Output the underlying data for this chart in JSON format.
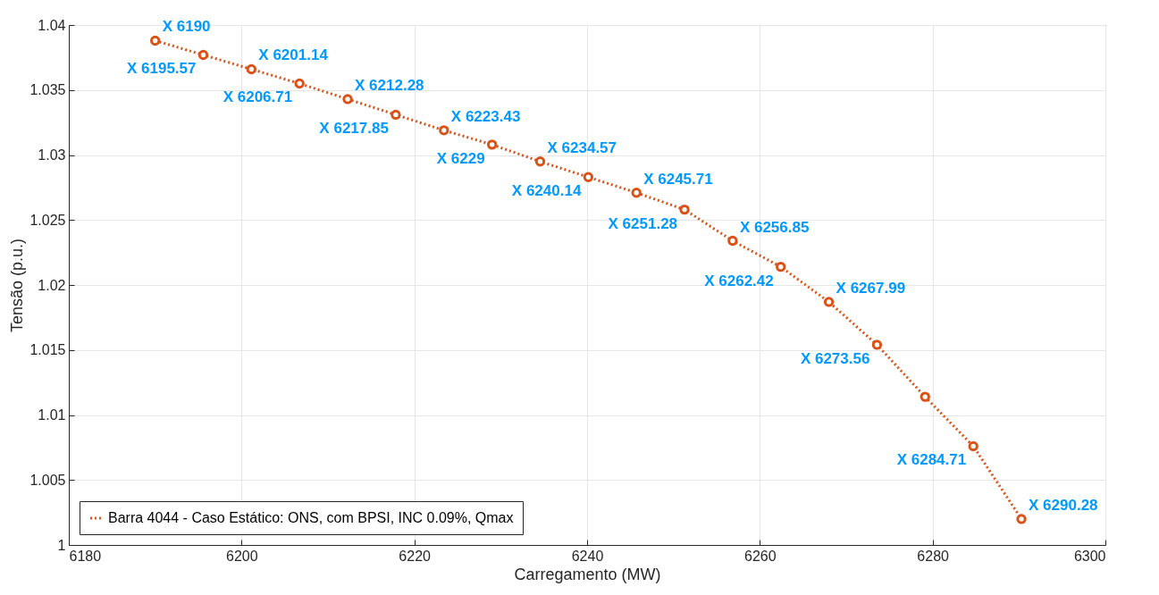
{
  "chart_data": {
    "type": "line",
    "xlabel": "Carregamento (MW)",
    "ylabel": "Tensão (p.u.)",
    "x": [
      6190,
      6195.57,
      6201.14,
      6206.71,
      6212.28,
      6217.85,
      6223.43,
      6229,
      6234.57,
      6240.14,
      6245.71,
      6251.28,
      6256.85,
      6262.42,
      6267.99,
      6273.56,
      6279.13,
      6284.71,
      6290.28
    ],
    "series": [
      {
        "name": "Barra 4044 - Caso Estático: ONS, com BPSI, INC 0.09%, Qmax",
        "color": "#d95319",
        "values": [
          1.0388,
          1.0377,
          1.0366,
          1.0355,
          1.0343,
          1.0331,
          1.0319,
          1.0308,
          1.0295,
          1.0283,
          1.0271,
          1.0258,
          1.0234,
          1.0214,
          1.0187,
          1.0154,
          1.0114,
          1.0076,
          1.002
        ],
        "value_labels": [
          "X 6190",
          "X 6195.57",
          "X 6201.14",
          "X 6206.71",
          "X 6212.28",
          "X 6217.85",
          "X 6223.43",
          "X 6229",
          "X 6234.57",
          "X 6240.14",
          "X 6245.71",
          "X 6251.28",
          "X 6256.85",
          "X 6262.42",
          "X 6267.99",
          "X 6273.56",
          null,
          "X 6284.71",
          "X 6290.28"
        ]
      }
    ],
    "xlim": [
      6180,
      6300
    ],
    "xticks": [
      6180,
      6200,
      6220,
      6240,
      6260,
      6280,
      6300
    ],
    "ylim": [
      1,
      1.04
    ],
    "yticks": [
      1,
      1.005,
      1.01,
      1.015,
      1.02,
      1.025,
      1.03,
      1.035,
      1.04
    ],
    "grid": true,
    "legend": "bottom left",
    "marker": "circle",
    "line_style": "dotted"
  }
}
